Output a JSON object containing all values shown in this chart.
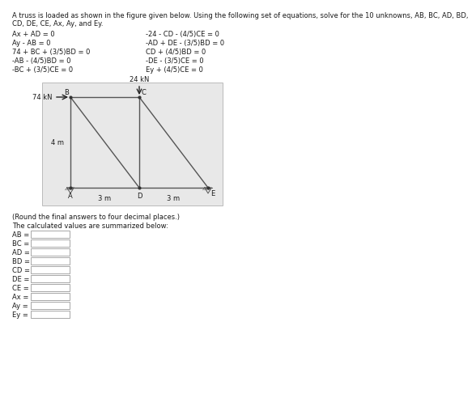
{
  "header_line1": "A truss is loaded as shown in the figure given below. Using the following set of equations, solve for the 10 unknowns, AB, BC, AD, BD,",
  "header_line2": "CD, DE, CE, Ax, Ay, and Ey.",
  "equations_left": [
    "Ax + AD = 0",
    "Ay - AB = 0",
    "74 + BC + (3/5)BD = 0",
    "-AB - (4/5)BD = 0",
    "-BC + (3/5)CE = 0"
  ],
  "equations_right": [
    "-24 - CD - (4/5)CE = 0",
    "-AD + DE - (3/5)BD = 0",
    "CD + (4/5)BD = 0",
    "-DE - (3/5)CE = 0",
    "Ey + (4/5)CE = 0"
  ],
  "eq_subscripts_left": [
    [
      0,
      1
    ],
    [
      0,
      1
    ],
    [],
    [],
    []
  ],
  "note": "(Round the final answers to four decimal places.)",
  "summary_text": "The calculated values are summarized below:",
  "answer_labels": [
    "AB =",
    "BC =",
    "AD =",
    "BD =",
    "CD =",
    "DE =",
    "CE =",
    "Ax =",
    "Ay =",
    "Ey ="
  ],
  "answer_subscripts": [
    "",
    "",
    "",
    "",
    "",
    "",
    "",
    "x",
    "y",
    "y"
  ],
  "load_24kN": "24 kN",
  "load_74kN": "74 kN",
  "dim_4m": "4 m",
  "dim_3m": "3 m",
  "truss_bg": "#e8e8e8",
  "member_color": "#555555",
  "text_color": "#1a1a1a"
}
